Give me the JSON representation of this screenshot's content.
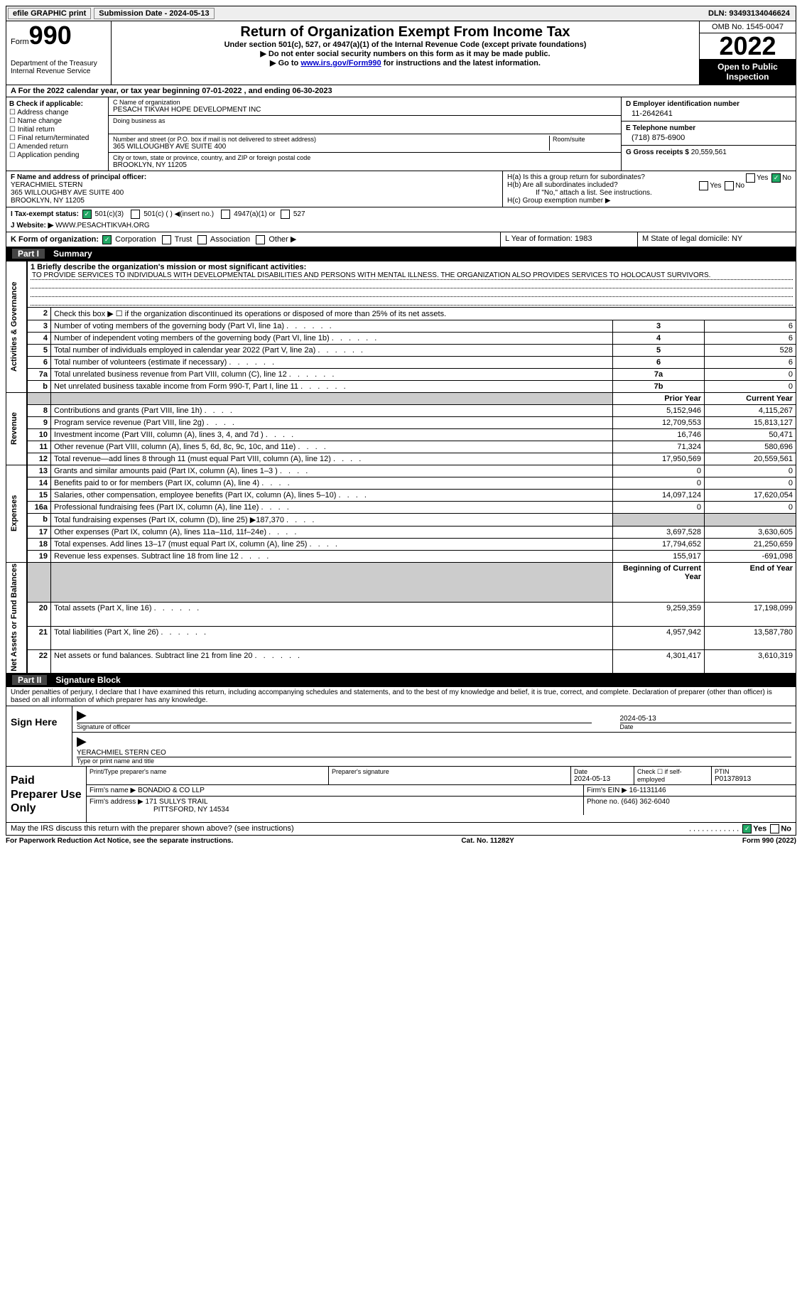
{
  "topbar": {
    "efile": "efile GRAPHIC print",
    "submission": "Submission Date - 2024-05-13",
    "dln": "DLN: 93493134046624"
  },
  "header": {
    "form": "Form",
    "form_num": "990",
    "dept": "Department of the Treasury\nInternal Revenue Service",
    "title": "Return of Organization Exempt From Income Tax",
    "subtitle": "Under section 501(c), 527, or 4947(a)(1) of the Internal Revenue Code (except private foundations)",
    "note1": "▶ Do not enter social security numbers on this form as it may be made public.",
    "note2_pre": "▶ Go to ",
    "note2_link": "www.irs.gov/Form990",
    "note2_post": " for instructions and the latest information.",
    "omb": "OMB No. 1545-0047",
    "year": "2022",
    "open": "Open to Public Inspection"
  },
  "section_a": "A For the 2022 calendar year, or tax year beginning 07-01-2022    , and ending 06-30-2023",
  "col_b": {
    "head": "B Check if applicable:",
    "items": [
      "Address change",
      "Name change",
      "Initial return",
      "Final return/terminated",
      "Amended return",
      "Application pending"
    ]
  },
  "col_c": {
    "name_hint": "C Name of organization",
    "name": "PESACH TIKVAH HOPE DEVELOPMENT INC",
    "dba_hint": "Doing business as",
    "dba": "",
    "addr_hint": "Number and street (or P.O. box if mail is not delivered to street address)",
    "addr": "365 WILLOUGHBY AVE SUITE 400",
    "room_hint": "Room/suite",
    "city_hint": "City or town, state or province, country, and ZIP or foreign postal code",
    "city": "BROOKLYN, NY  11205"
  },
  "col_d": {
    "ein_label": "D Employer identification number",
    "ein": "11-2642641",
    "tel_label": "E Telephone number",
    "tel": "(718) 875-6900",
    "gross_label": "G Gross receipts $",
    "gross": "20,559,561"
  },
  "section_f": {
    "label": "F Name and address of principal officer:",
    "name": "YERACHMIEL STERN",
    "addr1": "365 WILLOUGHBY AVE SUITE 400",
    "addr2": "BROOKLYN, NY  11205"
  },
  "section_h": {
    "a": "H(a)  Is this a group return for subordinates?",
    "b": "H(b)  Are all subordinates included?",
    "b_note": "If \"No,\" attach a list. See instructions.",
    "c": "H(c)  Group exemption number ▶"
  },
  "section_i": {
    "label": "I    Tax-exempt status:",
    "opts": [
      "501(c)(3)",
      "501(c) (  ) ◀(insert no.)",
      "4947(a)(1) or",
      "527"
    ]
  },
  "section_j": {
    "label": "J   Website: ▶",
    "val": "WWW.PESACHTIKVAH.ORG"
  },
  "section_k": "K Form of organization:",
  "k_opts": [
    "Corporation",
    "Trust",
    "Association",
    "Other ▶"
  ],
  "section_l": "L Year of formation: 1983",
  "section_m": "M State of legal domicile: NY",
  "part1": {
    "label": "Part I",
    "title": "Summary"
  },
  "summary": {
    "sides": [
      "Activities & Governance",
      "Revenue",
      "Expenses",
      "Net Assets or Fund Balances"
    ],
    "mission_label": "1   Briefly describe the organization's mission or most significant activities:",
    "mission": "TO PROVIDE SERVICES TO INDIVIDUALS WITH DEVELOPMENTAL DISABILITIES AND PERSONS WITH MENTAL ILLNESS. THE ORGANIZATION ALSO PROVIDES SERVICES TO HOLOCAUST SURVIVORS.",
    "line2": "Check this box ▶ ☐  if the organization discontinued its operations or disposed of more than 25% of its net assets.",
    "rows_ag": [
      {
        "n": "3",
        "d": "Number of voting members of the governing body (Part VI, line 1a)",
        "box": "3",
        "v": "6"
      },
      {
        "n": "4",
        "d": "Number of independent voting members of the governing body (Part VI, line 1b)",
        "box": "4",
        "v": "6"
      },
      {
        "n": "5",
        "d": "Total number of individuals employed in calendar year 2022 (Part V, line 2a)",
        "box": "5",
        "v": "528"
      },
      {
        "n": "6",
        "d": "Total number of volunteers (estimate if necessary)",
        "box": "6",
        "v": "6"
      },
      {
        "n": "7a",
        "d": "Total unrelated business revenue from Part VIII, column (C), line 12",
        "box": "7a",
        "v": "0"
      },
      {
        "n": "b",
        "d": "Net unrelated business taxable income from Form 990-T, Part I, line 11",
        "box": "7b",
        "v": "0"
      }
    ],
    "head_py": "Prior Year",
    "head_cy": "Current Year",
    "rows_rev": [
      {
        "n": "8",
        "d": "Contributions and grants (Part VIII, line 1h)",
        "py": "5,152,946",
        "cy": "4,115,267"
      },
      {
        "n": "9",
        "d": "Program service revenue (Part VIII, line 2g)",
        "py": "12,709,553",
        "cy": "15,813,127"
      },
      {
        "n": "10",
        "d": "Investment income (Part VIII, column (A), lines 3, 4, and 7d )",
        "py": "16,746",
        "cy": "50,471"
      },
      {
        "n": "11",
        "d": "Other revenue (Part VIII, column (A), lines 5, 6d, 8c, 9c, 10c, and 11e)",
        "py": "71,324",
        "cy": "580,696"
      },
      {
        "n": "12",
        "d": "Total revenue—add lines 8 through 11 (must equal Part VIII, column (A), line 12)",
        "py": "17,950,569",
        "cy": "20,559,561"
      }
    ],
    "rows_exp": [
      {
        "n": "13",
        "d": "Grants and similar amounts paid (Part IX, column (A), lines 1–3 )",
        "py": "0",
        "cy": "0"
      },
      {
        "n": "14",
        "d": "Benefits paid to or for members (Part IX, column (A), line 4)",
        "py": "0",
        "cy": "0"
      },
      {
        "n": "15",
        "d": "Salaries, other compensation, employee benefits (Part IX, column (A), lines 5–10)",
        "py": "14,097,124",
        "cy": "17,620,054"
      },
      {
        "n": "16a",
        "d": "Professional fundraising fees (Part IX, column (A), line 11e)",
        "py": "0",
        "cy": "0"
      },
      {
        "n": "b",
        "d": "Total fundraising expenses (Part IX, column (D), line 25) ▶187,370",
        "py": "",
        "cy": "",
        "grey": true
      },
      {
        "n": "17",
        "d": "Other expenses (Part IX, column (A), lines 11a–11d, 11f–24e)",
        "py": "3,697,528",
        "cy": "3,630,605"
      },
      {
        "n": "18",
        "d": "Total expenses. Add lines 13–17 (must equal Part IX, column (A), line 25)",
        "py": "17,794,652",
        "cy": "21,250,659"
      },
      {
        "n": "19",
        "d": "Revenue less expenses. Subtract line 18 from line 12",
        "py": "155,917",
        "cy": "-691,098"
      }
    ],
    "head_boy": "Beginning of Current Year",
    "head_eoy": "End of Year",
    "rows_na": [
      {
        "n": "20",
        "d": "Total assets (Part X, line 16)",
        "py": "9,259,359",
        "cy": "17,198,099"
      },
      {
        "n": "21",
        "d": "Total liabilities (Part X, line 26)",
        "py": "4,957,942",
        "cy": "13,587,780"
      },
      {
        "n": "22",
        "d": "Net assets or fund balances. Subtract line 21 from line 20",
        "py": "4,301,417",
        "cy": "3,610,319"
      }
    ]
  },
  "part2": {
    "label": "Part II",
    "title": "Signature Block"
  },
  "declare": "Under penalties of perjury, I declare that I have examined this return, including accompanying schedules and statements, and to the best of my knowledge and belief, it is true, correct, and complete. Declaration of preparer (other than officer) is based on all information of which preparer has any knowledge.",
  "sign": {
    "label": "Sign Here",
    "sig_hint": "Signature of officer",
    "date": "2024-05-13",
    "date_hint": "Date",
    "name": "YERACHMIEL STERN  CEO",
    "name_hint": "Type or print name and title"
  },
  "prep": {
    "label": "Paid Preparer Use Only",
    "r1": {
      "a": "Print/Type preparer's name",
      "b": "Preparer's signature",
      "c_lbl": "Date",
      "c": "2024-05-13",
      "d": "Check ☐ if self-employed",
      "e_lbl": "PTIN",
      "e": "P01378913"
    },
    "r2": {
      "a": "Firm's name    ▶",
      "b": "BONADIO & CO LLP",
      "c": "Firm's EIN ▶",
      "d": "16-1131146"
    },
    "r3": {
      "a": "Firm's address ▶",
      "b": "171 SULLYS TRAIL",
      "c": "Phone no. (646) 362-6040"
    },
    "r3b": "PITTSFORD, NY  14534"
  },
  "may": "May the IRS discuss this return with the preparer shown above? (see instructions)",
  "footer": {
    "left": "For Paperwork Reduction Act Notice, see the separate instructions.",
    "mid": "Cat. No. 11282Y",
    "right": "Form 990 (2022)"
  }
}
